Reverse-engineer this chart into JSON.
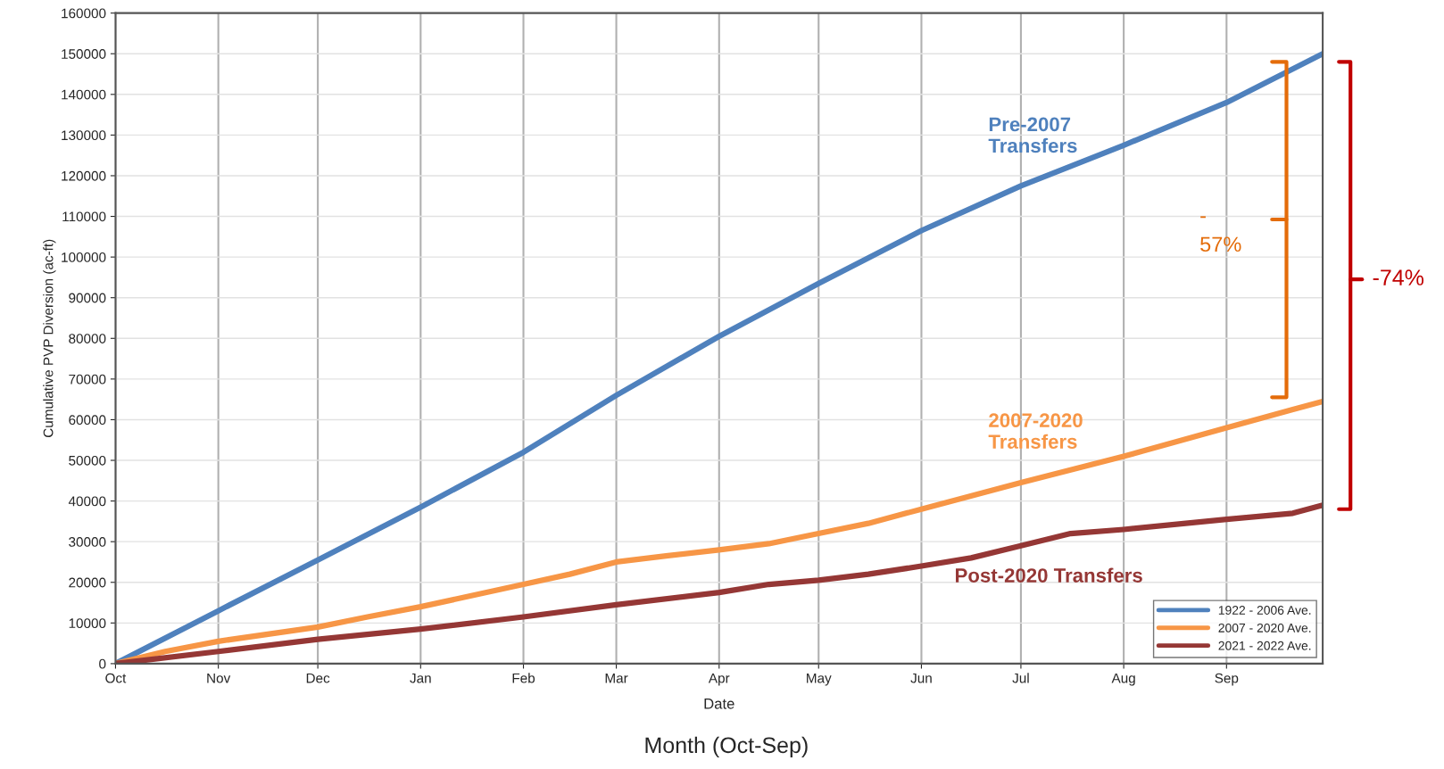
{
  "chart_data": {
    "type": "line",
    "ylabel": "Cumulative PVP Diversion (ac-ft)",
    "xlabel": "Date",
    "xlim": [
      "2021-10-01",
      "2022-09-30"
    ],
    "xticks": [
      {
        "value": "2021-10-01",
        "label": "Oct"
      },
      {
        "value": "2021-11-01",
        "label": "Nov"
      },
      {
        "value": "2021-12-01",
        "label": "Dec"
      },
      {
        "value": "2022-01-01",
        "label": "Jan"
      },
      {
        "value": "2022-02-01",
        "label": "Feb"
      },
      {
        "value": "2022-03-01",
        "label": "Mar"
      },
      {
        "value": "2022-04-01",
        "label": "Apr"
      },
      {
        "value": "2022-05-01",
        "label": "May"
      },
      {
        "value": "2022-06-01",
        "label": "Jun"
      },
      {
        "value": "2022-07-01",
        "label": "Jul"
      },
      {
        "value": "2022-08-01",
        "label": "Aug"
      },
      {
        "value": "2022-09-01",
        "label": "Sep"
      }
    ],
    "ylim": [
      0,
      160000
    ],
    "yticks": [
      0,
      10000,
      20000,
      30000,
      40000,
      50000,
      60000,
      70000,
      80000,
      90000,
      100000,
      110000,
      120000,
      130000,
      140000,
      150000,
      160000
    ],
    "series": [
      {
        "name": "1922 - 2006 Ave.",
        "color": "#4f81bd",
        "x": [
          "2021-10-01",
          "2021-11-01",
          "2021-12-01",
          "2022-01-01",
          "2022-02-01",
          "2022-03-01",
          "2022-04-01",
          "2022-05-01",
          "2022-06-01",
          "2022-07-01",
          "2022-08-01",
          "2022-09-01",
          "2022-09-30"
        ],
        "values": [
          0,
          13000,
          25500,
          38500,
          52000,
          66000,
          80500,
          93500,
          106500,
          117500,
          127500,
          138000,
          150000
        ]
      },
      {
        "name": "2007 - 2020 Ave.",
        "color": "#f79646",
        "x": [
          "2021-10-01",
          "2021-10-16",
          "2021-11-01",
          "2021-12-01",
          "2021-12-16",
          "2022-01-01",
          "2022-02-01",
          "2022-02-15",
          "2022-03-01",
          "2022-03-16",
          "2022-04-01",
          "2022-04-16",
          "2022-05-01",
          "2022-05-16",
          "2022-06-01",
          "2022-07-01",
          "2022-08-01",
          "2022-09-01",
          "2022-09-21",
          "2022-09-30"
        ],
        "values": [
          0,
          3000,
          5500,
          9000,
          11500,
          14000,
          19500,
          22000,
          25000,
          26500,
          28000,
          29500,
          32000,
          34500,
          38000,
          44500,
          51000,
          58000,
          62500,
          64500
        ]
      },
      {
        "name": "2021 - 2022 Ave.",
        "color": "#953735",
        "x": [
          "2021-10-01",
          "2021-11-01",
          "2021-12-01",
          "2022-01-01",
          "2022-02-01",
          "2022-03-01",
          "2022-04-01",
          "2022-04-16",
          "2022-05-01",
          "2022-05-16",
          "2022-06-01",
          "2022-06-16",
          "2022-07-01",
          "2022-07-16",
          "2022-08-01",
          "2022-09-01",
          "2022-09-21",
          "2022-09-30"
        ],
        "values": [
          0,
          3000,
          6000,
          8500,
          11500,
          14500,
          17500,
          19500,
          20500,
          22000,
          24000,
          26000,
          29000,
          32000,
          33000,
          35500,
          37000,
          39000
        ]
      }
    ],
    "annotations": [
      "Pre-2007\nTransfers",
      "2007-2020\nTransfers",
      "Post-2020 Transfers",
      "-\n57%",
      "-74%",
      "Month (Oct-Sep)"
    ],
    "grid": true,
    "legend": "bottom right",
    "marker": "none",
    "line_style": "solid"
  }
}
